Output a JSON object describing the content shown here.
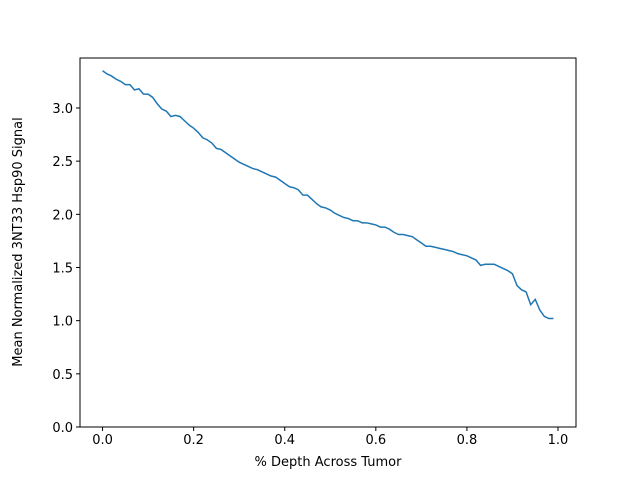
{
  "chart_data": {
    "type": "line",
    "xlabel": "% Depth Across Tumor",
    "ylabel": "Mean Normalized 3NT33 Hsp90 Signal",
    "x": [
      0.0,
      0.01,
      0.02,
      0.03,
      0.04,
      0.05,
      0.06,
      0.07,
      0.08,
      0.09,
      0.1,
      0.11,
      0.12,
      0.13,
      0.14,
      0.15,
      0.16,
      0.17,
      0.18,
      0.19,
      0.2,
      0.21,
      0.22,
      0.23,
      0.24,
      0.25,
      0.26,
      0.27,
      0.28,
      0.29,
      0.3,
      0.31,
      0.32,
      0.33,
      0.34,
      0.35,
      0.36,
      0.37,
      0.38,
      0.39,
      0.4,
      0.41,
      0.42,
      0.43,
      0.44,
      0.45,
      0.46,
      0.47,
      0.48,
      0.49,
      0.5,
      0.51,
      0.52,
      0.53,
      0.54,
      0.55,
      0.56,
      0.57,
      0.58,
      0.59,
      0.6,
      0.61,
      0.62,
      0.63,
      0.64,
      0.65,
      0.66,
      0.67,
      0.68,
      0.69,
      0.7,
      0.71,
      0.72,
      0.73,
      0.74,
      0.75,
      0.76,
      0.77,
      0.78,
      0.79,
      0.8,
      0.81,
      0.82,
      0.83,
      0.84,
      0.85,
      0.86,
      0.87,
      0.88,
      0.89,
      0.9,
      0.91,
      0.92,
      0.93,
      0.94,
      0.95,
      0.96,
      0.97,
      0.98,
      0.99
    ],
    "series": [
      {
        "color": "#1f77b4",
        "values": [
          3.35,
          3.32,
          3.3,
          3.27,
          3.25,
          3.22,
          3.22,
          3.17,
          3.18,
          3.13,
          3.13,
          3.1,
          3.04,
          2.99,
          2.97,
          2.92,
          2.93,
          2.92,
          2.88,
          2.84,
          2.81,
          2.77,
          2.72,
          2.7,
          2.67,
          2.62,
          2.61,
          2.58,
          2.55,
          2.52,
          2.49,
          2.47,
          2.45,
          2.43,
          2.42,
          2.4,
          2.38,
          2.36,
          2.35,
          2.32,
          2.29,
          2.26,
          2.25,
          2.23,
          2.18,
          2.18,
          2.14,
          2.1,
          2.07,
          2.06,
          2.04,
          2.01,
          1.99,
          1.97,
          1.96,
          1.94,
          1.94,
          1.92,
          1.92,
          1.91,
          1.9,
          1.88,
          1.88,
          1.86,
          1.83,
          1.81,
          1.81,
          1.8,
          1.79,
          1.76,
          1.73,
          1.7,
          1.7,
          1.69,
          1.68,
          1.67,
          1.66,
          1.65,
          1.63,
          1.62,
          1.61,
          1.59,
          1.57,
          1.52,
          1.53,
          1.53,
          1.53,
          1.51,
          1.49,
          1.47,
          1.44,
          1.33,
          1.29,
          1.27,
          1.15,
          1.2,
          1.1,
          1.04,
          1.02,
          1.02
        ]
      }
    ],
    "xlim": [
      -0.0495,
      1.0395
    ],
    "ylim": [
      0,
      3.47
    ],
    "xticks": [
      {
        "value": 0,
        "label": "0.0"
      },
      0.2,
      0.4,
      0.6,
      0.8,
      {
        "value": 1,
        "label": "1.0"
      }
    ],
    "yticks": [
      {
        "value": 0,
        "label": "0.0"
      },
      0.5,
      {
        "value": 1,
        "label": "1.0"
      },
      1.5,
      {
        "value": 2,
        "label": "2.0"
      },
      2.5,
      {
        "value": 3,
        "label": "3.0"
      }
    ]
  }
}
